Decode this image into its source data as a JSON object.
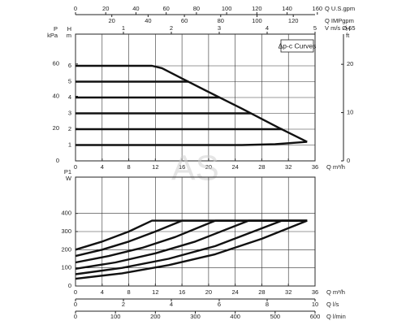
{
  "chart_data": [
    {
      "type": "line",
      "annotation": "Δp-c Curves",
      "watermark": "AS",
      "axes": [
        {
          "position": "bottom",
          "label": [
            "Q m³/h"
          ],
          "lim": [
            0,
            36
          ],
          "ticks": [
            0,
            4,
            8,
            12,
            16,
            20,
            24,
            28,
            32,
            36
          ],
          "grid": true
        },
        {
          "position": "left",
          "label": [
            "H",
            "m"
          ],
          "lim": [
            0,
            8
          ],
          "ticks": [
            1,
            2,
            3,
            4,
            5,
            6
          ],
          "grid": true
        },
        {
          "position": "left",
          "label": [
            "P",
            "kPa"
          ],
          "lim": [
            0,
            78.5
          ],
          "ticks": [
            0,
            20,
            40,
            60
          ]
        },
        {
          "position": "right",
          "label": [
            "H",
            "ft"
          ],
          "lim": [
            0,
            26.25
          ],
          "ticks": [
            0,
            10,
            20
          ]
        },
        {
          "position": "top",
          "label": [
            "Q U.S.gpm"
          ],
          "lim": [
            0,
            158.5
          ],
          "ticks": [
            0,
            20,
            40,
            60,
            80,
            100,
            120,
            140,
            160
          ]
        },
        {
          "position": "top",
          "label": [
            "Q IMPgpm"
          ],
          "lim": [
            0,
            132
          ],
          "ticks": [
            20,
            40,
            60,
            80,
            100,
            120
          ]
        },
        {
          "position": "top",
          "label": [
            "V m/s Ø 65"
          ],
          "lim": [
            0,
            5
          ],
          "ticks": [
            1,
            2,
            3,
            4,
            5
          ]
        }
      ],
      "series": [
        {
          "color": "#111111",
          "x": [
            0,
            11.5,
            13,
            16,
            20,
            25,
            30.5,
            34.8
          ],
          "values": [
            6,
            6,
            5.85,
            5.2,
            4.35,
            3.3,
            2.1,
            1.2
          ]
        },
        {
          "color": "#111111",
          "x": [
            0,
            17
          ],
          "values": [
            5,
            5
          ]
        },
        {
          "color": "#111111",
          "x": [
            0,
            21.7
          ],
          "values": [
            4,
            4
          ]
        },
        {
          "color": "#111111",
          "x": [
            0,
            26.4
          ],
          "values": [
            3,
            3
          ]
        },
        {
          "color": "#111111",
          "x": [
            0,
            31.1
          ],
          "values": [
            2,
            2
          ]
        },
        {
          "color": "#111111",
          "x": [
            0,
            25,
            30,
            34.8
          ],
          "values": [
            1,
            1,
            1.05,
            1.2
          ]
        }
      ]
    },
    {
      "type": "line",
      "axes": [
        {
          "position": "bottom",
          "label": [
            "Q m³/h"
          ],
          "lim": [
            0,
            36
          ],
          "ticks": [
            0,
            4,
            8,
            12,
            16,
            20,
            24,
            28,
            32,
            36
          ],
          "grid": true
        },
        {
          "position": "left",
          "label": [
            "P1",
            "W"
          ],
          "lim": [
            0,
            600
          ],
          "ticks": [
            0,
            100,
            200,
            300,
            400
          ],
          "grid": true
        },
        {
          "position": "bottom",
          "label": [
            "Q l/s"
          ],
          "lim": [
            0,
            10
          ],
          "ticks": [
            0,
            2,
            4,
            6,
            8,
            10
          ]
        },
        {
          "position": "bottom",
          "label": [
            "Q l/min"
          ],
          "lim": [
            0,
            600
          ],
          "ticks": [
            0,
            100,
            200,
            300,
            400,
            500,
            600
          ]
        }
      ],
      "series": [
        {
          "color": "#111111",
          "x": [
            0,
            4,
            8,
            11.5,
            34.8
          ],
          "values": [
            200,
            245,
            300,
            360,
            360
          ]
        },
        {
          "color": "#111111",
          "x": [
            0,
            4,
            8,
            12,
            16,
            34.8
          ],
          "values": [
            165,
            200,
            245,
            300,
            360,
            360
          ]
        },
        {
          "color": "#111111",
          "x": [
            0,
            5,
            10,
            15,
            21,
            34.8
          ],
          "values": [
            130,
            165,
            210,
            270,
            360,
            360
          ]
        },
        {
          "color": "#111111",
          "x": [
            0,
            6,
            12,
            18,
            26,
            34.8
          ],
          "values": [
            95,
            130,
            180,
            245,
            360,
            360
          ]
        },
        {
          "color": "#111111",
          "x": [
            0,
            7,
            14,
            21,
            31,
            34.8
          ],
          "values": [
            65,
            100,
            150,
            220,
            360,
            360
          ]
        },
        {
          "color": "#111111",
          "x": [
            0,
            7,
            14,
            21,
            28,
            34.8
          ],
          "values": [
            40,
            70,
            115,
            175,
            260,
            360
          ]
        }
      ]
    }
  ]
}
